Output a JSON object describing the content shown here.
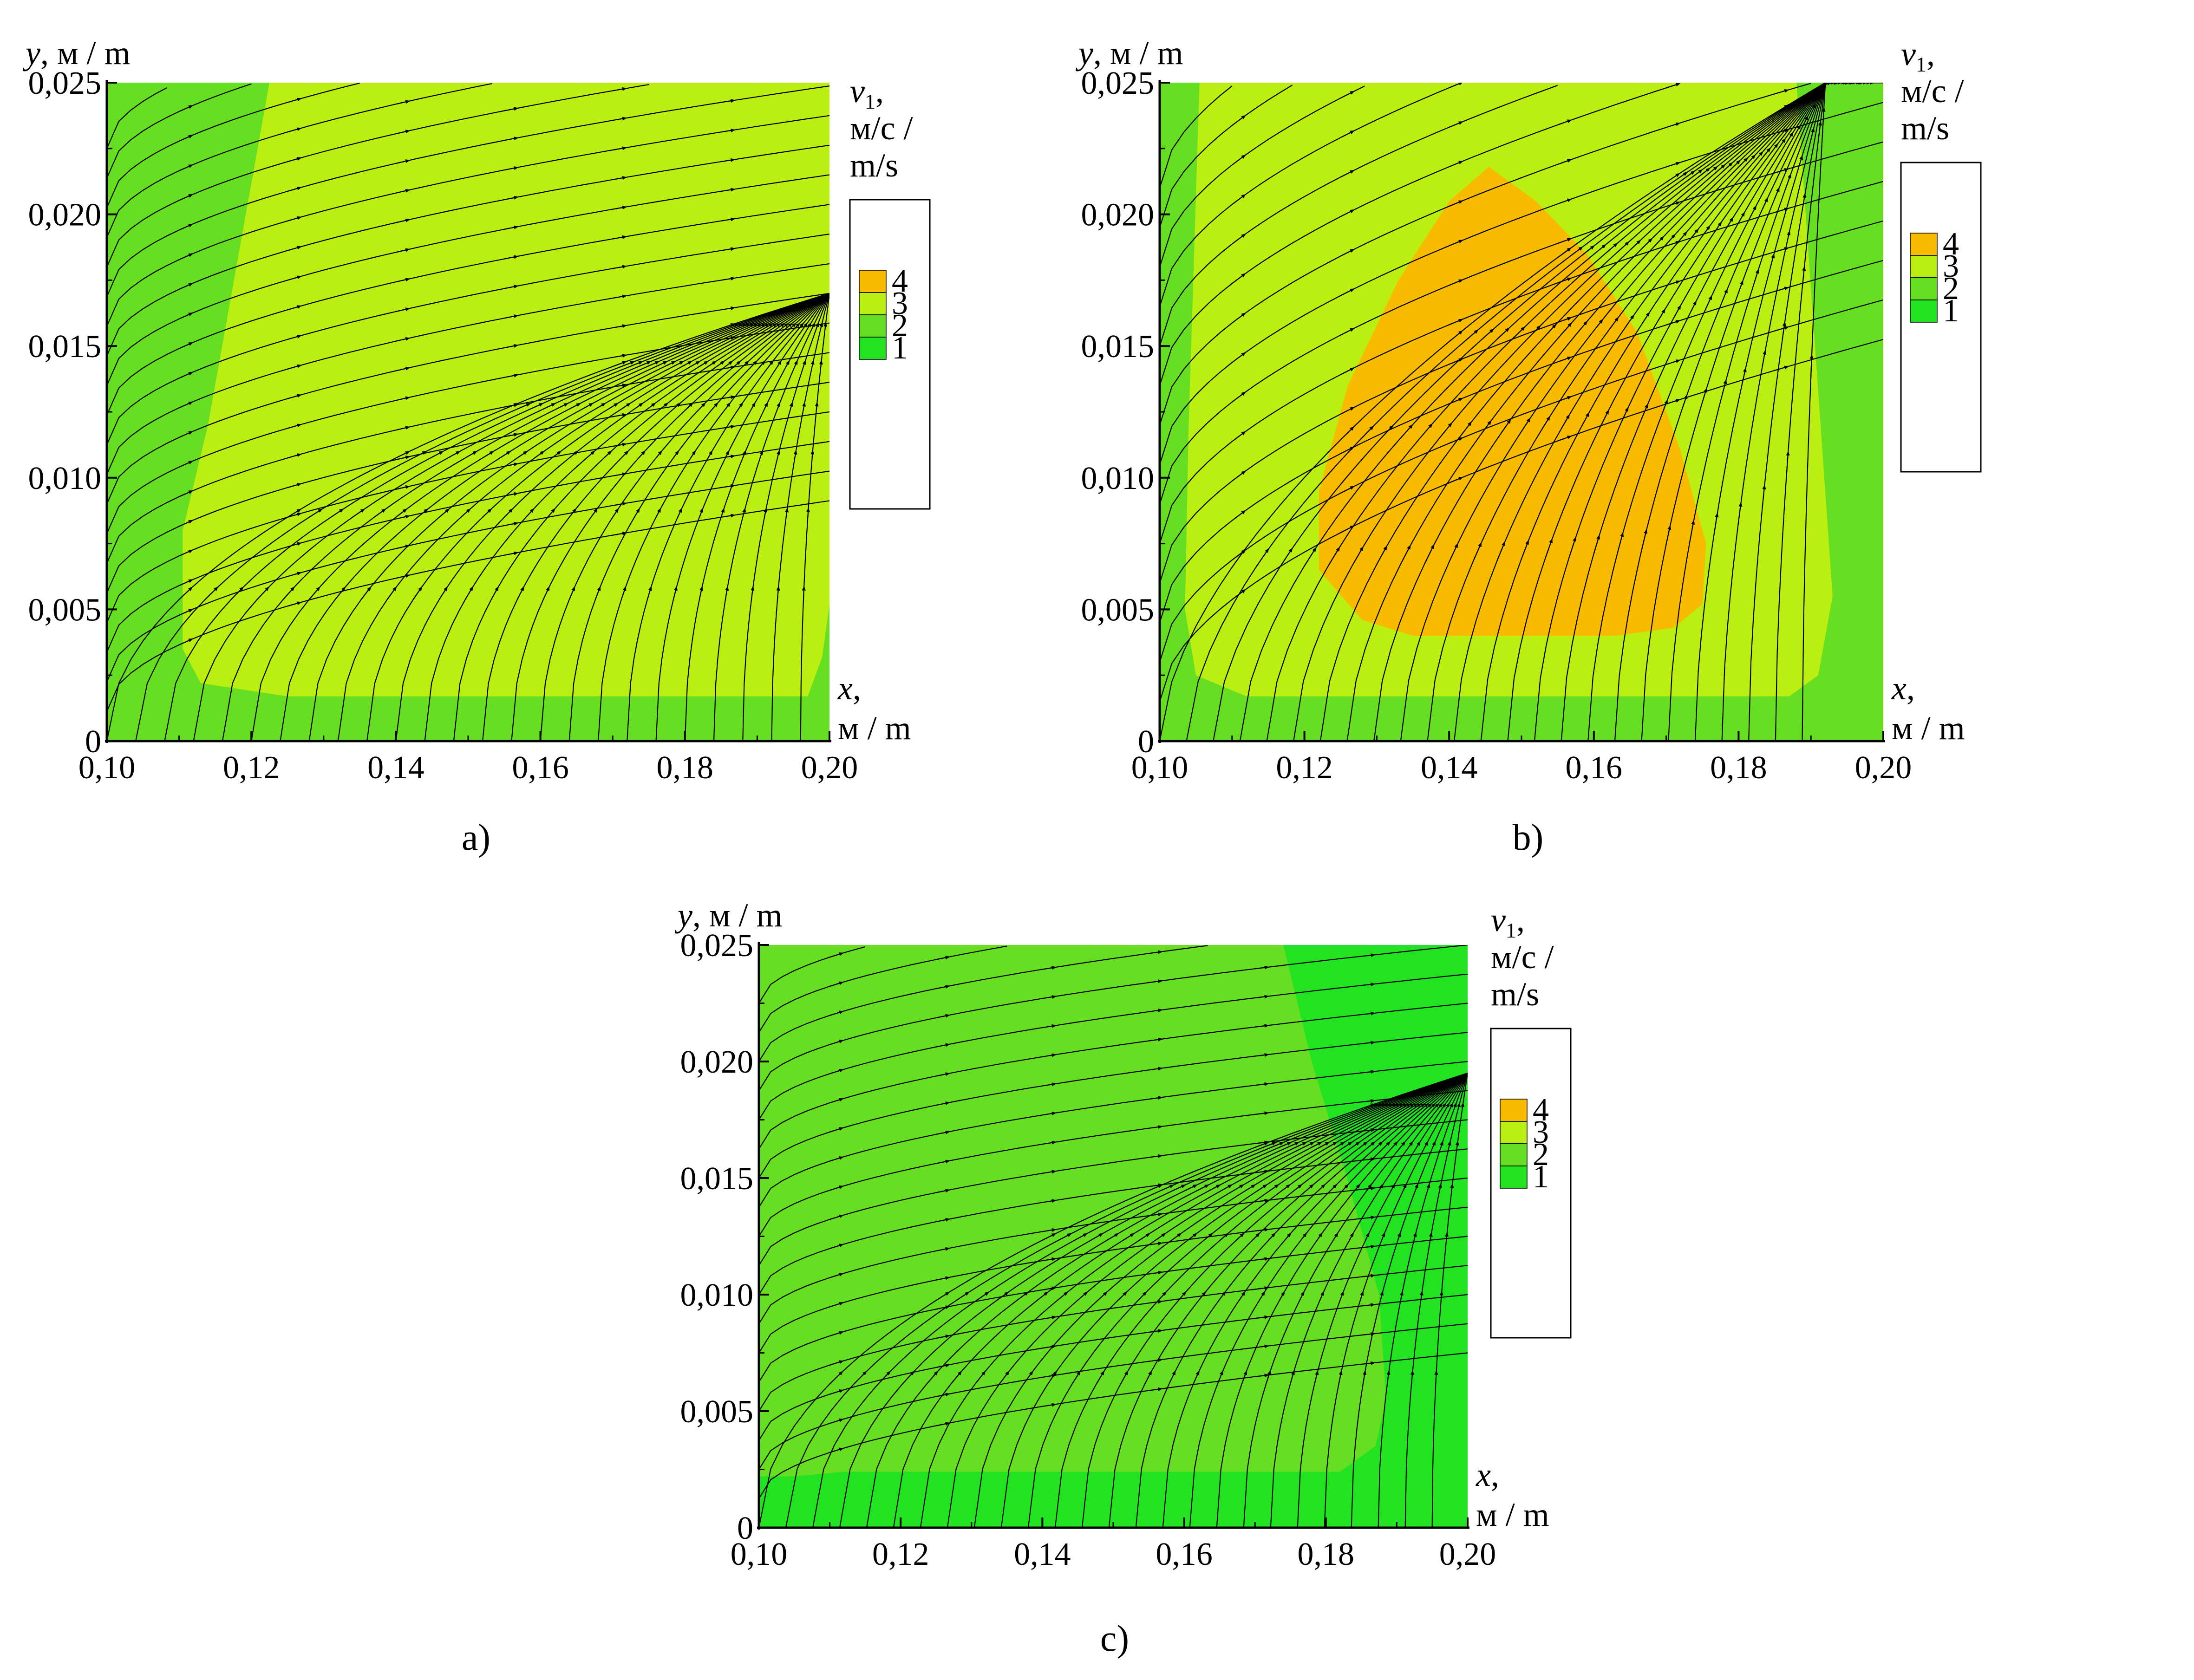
{
  "colors": {
    "level_1": "#22e322",
    "level_2": "#66de22",
    "level_3": "#bbee11",
    "level_4": "#f8bb00",
    "streamline": "#000000"
  },
  "chart_data": [
    {
      "type": "heatmap",
      "panel": "a)",
      "overlay": "streamlines",
      "xlabel": {
        "var": "x",
        "unit_line": "м / m"
      },
      "ylabel": {
        "var": "y",
        "unit": "м / m"
      },
      "xlim": [
        0.1,
        0.2
      ],
      "ylim": [
        0,
        0.025
      ],
      "x_ticks": [
        "0,10",
        "0,12",
        "0,14",
        "0,16",
        "0,18",
        "0,20"
      ],
      "y_ticks": [
        "0",
        "0,005",
        "0,010",
        "0,015",
        "0,020",
        "0,025"
      ],
      "legend": {
        "title_var": "v",
        "title_sub": "1",
        "title_unit1": "м/с /",
        "title_unit2": "m/s",
        "levels": [
          "4",
          "3",
          "2",
          "1"
        ],
        "placement": "right"
      },
      "regions": [
        {
          "level": 2,
          "points": [
            [
              0.1,
              0.0
            ],
            [
              0.2,
              0.0
            ],
            [
              0.2,
              0.025
            ],
            [
              0.1,
              0.025
            ]
          ]
        },
        {
          "level": 3,
          "points": [
            [
              0.1225,
              0.025
            ],
            [
              0.2,
              0.025
            ],
            [
              0.2,
              0.0052
            ],
            [
              0.199,
              0.0032
            ],
            [
              0.197,
              0.0017
            ],
            [
              0.125,
              0.0017
            ],
            [
              0.113,
              0.0022
            ],
            [
              0.1105,
              0.0035
            ],
            [
              0.1105,
              0.008
            ],
            [
              0.114,
              0.012
            ]
          ]
        }
      ]
    },
    {
      "type": "heatmap",
      "panel": "b)",
      "overlay": "streamlines",
      "xlabel": {
        "var": "x",
        "unit_line": "м / m"
      },
      "ylabel": {
        "var": "y",
        "unit": "м / m"
      },
      "xlim": [
        0.1,
        0.2
      ],
      "ylim": [
        0,
        0.025
      ],
      "x_ticks": [
        "0,10",
        "0,12",
        "0,14",
        "0,16",
        "0,18",
        "0,20"
      ],
      "y_ticks": [
        "0",
        "0,005",
        "0,010",
        "0,015",
        "0,020",
        "0,025"
      ],
      "legend": {
        "title_var": "v",
        "title_sub": "1",
        "title_unit1": "м/с /",
        "title_unit2": "m/s",
        "levels": [
          "4",
          "3",
          "2",
          "1"
        ],
        "placement": "right"
      },
      "regions": [
        {
          "level": 2,
          "points": [
            [
              0.1,
              0.0
            ],
            [
              0.2,
              0.0
            ],
            [
              0.2,
              0.025
            ],
            [
              0.1,
              0.025
            ]
          ]
        },
        {
          "level": 3,
          "points": [
            [
              0.1055,
              0.025
            ],
            [
              0.188,
              0.025
            ],
            [
              0.193,
              0.0055
            ],
            [
              0.191,
              0.0025
            ],
            [
              0.187,
              0.0017
            ],
            [
              0.112,
              0.0017
            ],
            [
              0.105,
              0.0025
            ],
            [
              0.1035,
              0.005
            ],
            [
              0.104,
              0.012
            ]
          ]
        },
        {
          "level": 4,
          "points": [
            [
              0.1455,
              0.0218
            ],
            [
              0.152,
              0.0205
            ],
            [
              0.159,
              0.0185
            ],
            [
              0.166,
              0.0155
            ],
            [
              0.172,
              0.011
            ],
            [
              0.1755,
              0.0075
            ],
            [
              0.175,
              0.0052
            ],
            [
              0.171,
              0.0043
            ],
            [
              0.163,
              0.004
            ],
            [
              0.135,
              0.004
            ],
            [
              0.128,
              0.0046
            ],
            [
              0.122,
              0.0065
            ],
            [
              0.122,
              0.0095
            ],
            [
              0.126,
              0.0135
            ],
            [
              0.133,
              0.0175
            ],
            [
              0.14,
              0.0205
            ]
          ]
        }
      ]
    },
    {
      "type": "heatmap",
      "panel": "c)",
      "overlay": "streamlines",
      "xlabel": {
        "var": "x",
        "unit_line": "м / m"
      },
      "ylabel": {
        "var": "y",
        "unit": "м / m"
      },
      "xlim": [
        0.1,
        0.2
      ],
      "ylim": [
        0,
        0.025
      ],
      "x_ticks": [
        "0,10",
        "0,12",
        "0,14",
        "0,16",
        "0,18",
        "0,20"
      ],
      "y_ticks": [
        "0",
        "0,005",
        "0,010",
        "0,015",
        "0,020",
        "0,025"
      ],
      "legend": {
        "title_var": "v",
        "title_sub": "1",
        "title_unit1": "м/с /",
        "title_unit2": "m/s",
        "levels": [
          "4",
          "3",
          "2",
          "1"
        ],
        "placement": "right"
      },
      "regions": [
        {
          "level": 1,
          "points": [
            [
              0.1,
              0.0
            ],
            [
              0.2,
              0.0
            ],
            [
              0.2,
              0.025
            ],
            [
              0.1,
              0.025
            ]
          ]
        },
        {
          "level": 2,
          "points": [
            [
              0.1,
              0.025
            ],
            [
              0.174,
              0.025
            ],
            [
              0.178,
              0.02
            ],
            [
              0.183,
              0.015
            ],
            [
              0.1875,
              0.01
            ],
            [
              0.1885,
              0.0055
            ],
            [
              0.187,
              0.0035
            ],
            [
              0.182,
              0.0024
            ],
            [
              0.112,
              0.0024
            ],
            [
              0.105,
              0.0022
            ],
            [
              0.1,
              0.0022
            ]
          ]
        }
      ]
    }
  ],
  "captions": [
    "a)",
    "b)",
    "c)"
  ]
}
